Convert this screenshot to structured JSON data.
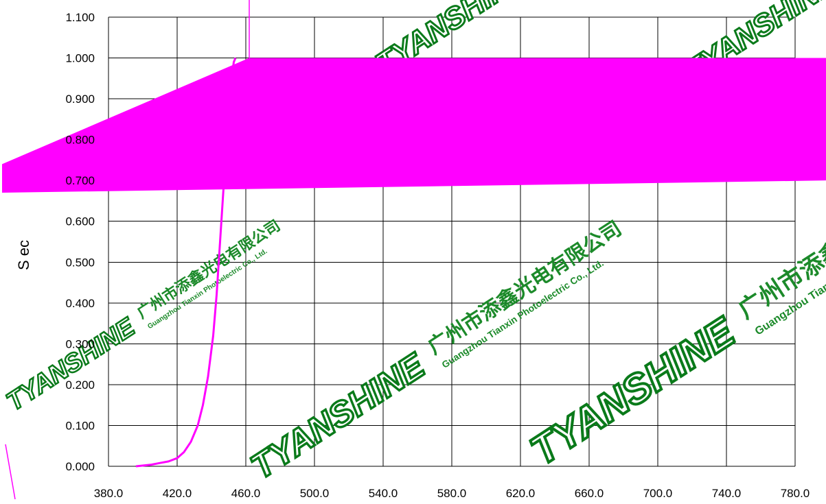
{
  "chart_data": {
    "type": "line",
    "title": "",
    "xlabel": "",
    "ylabel": "S ec",
    "xlim": [
      380,
      780
    ],
    "ylim": [
      0,
      1.1
    ],
    "grid": true,
    "x_ticks": [
      "380.0",
      "420.0",
      "460.0",
      "500.0",
      "540.0",
      "580.0",
      "620.0",
      "660.0",
      "700.0",
      "740.0",
      "780.0"
    ],
    "y_ticks": [
      "0.000",
      "0.100",
      "0.200",
      "0.300",
      "0.400",
      "0.500",
      "0.600",
      "0.700",
      "0.800",
      "0.900",
      "1.000",
      "1.100"
    ],
    "series": [
      {
        "color": "#ff00ff",
        "x": [
          396,
          405,
          410,
          415,
          420,
          424,
          428,
          432,
          435,
          438,
          441,
          443,
          445,
          447,
          449,
          451,
          452,
          453,
          454
        ],
        "y": [
          0.0,
          0.004,
          0.008,
          0.012,
          0.02,
          0.035,
          0.06,
          0.1,
          0.15,
          0.22,
          0.32,
          0.42,
          0.55,
          0.68,
          0.8,
          0.9,
          0.96,
          0.99,
          1.0
        ]
      }
    ],
    "overlay_band": {
      "color": "#ff00ff",
      "left_top": 0.74,
      "left_bottom": 0.67,
      "right_top": 1.0,
      "right_bottom": 0.7,
      "corner_x": 462,
      "corner_y": 1.0
    }
  },
  "watermarks": [
    {
      "brand": "TYANSHINE",
      "company_cn": "广州市添鑫光电有限公司",
      "company_en": "Guangzhou Tianxin Photoelectric Co., Ltd."
    }
  ]
}
